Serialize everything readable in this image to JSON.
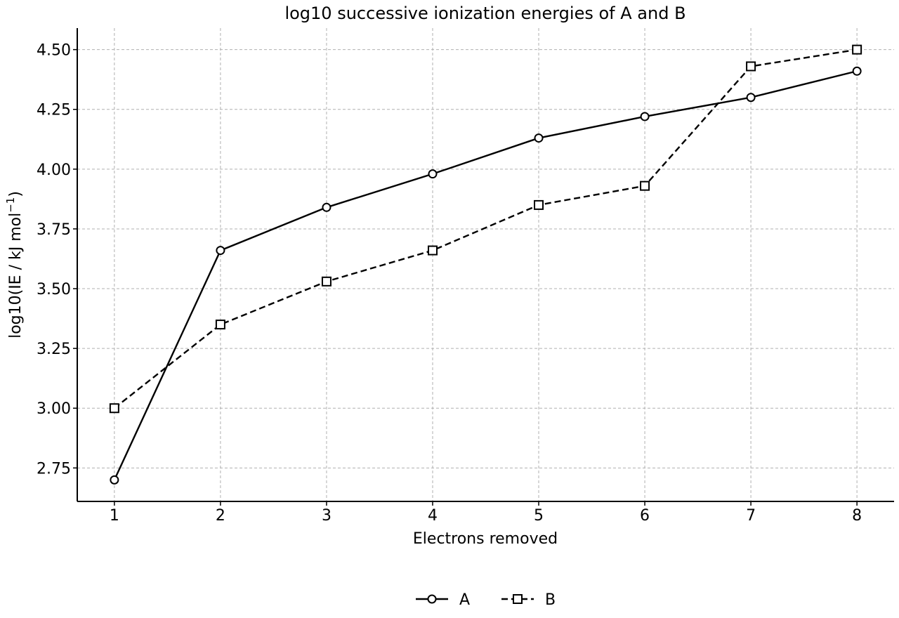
{
  "chart_data": {
    "type": "line",
    "title": "log10 successive ionization energies of A and B",
    "xlabel": "Electrons removed",
    "ylabel_main": "log10(IE / kJ mol",
    "ylabel_sup": "−1",
    "ylabel_close": ")",
    "x": [
      1,
      2,
      3,
      4,
      5,
      6,
      7,
      8
    ],
    "xlim": [
      0.65,
      8.35
    ],
    "ylim": [
      2.61,
      4.59
    ],
    "xticks": [
      1,
      2,
      3,
      4,
      5,
      6,
      7,
      8
    ],
    "yticks": [
      2.75,
      3.0,
      3.25,
      3.5,
      3.75,
      4.0,
      4.25,
      4.5
    ],
    "ytick_labels": [
      "2.75",
      "3.00",
      "3.25",
      "3.50",
      "3.75",
      "4.00",
      "4.25",
      "4.50"
    ],
    "grid": true,
    "legend_position": "bottom-center",
    "series": [
      {
        "name": "A",
        "marker": "circle",
        "linestyle": "solid",
        "values": [
          2.7,
          3.66,
          3.84,
          3.98,
          4.13,
          4.22,
          4.3,
          4.41
        ]
      },
      {
        "name": "B",
        "marker": "square",
        "linestyle": "dashed",
        "values": [
          3.0,
          3.35,
          3.53,
          3.66,
          3.85,
          3.93,
          4.43,
          4.5
        ]
      }
    ],
    "colors": {
      "line": "#000000",
      "marker_fill": "#ffffff",
      "grid": "#b0b0b0"
    }
  }
}
